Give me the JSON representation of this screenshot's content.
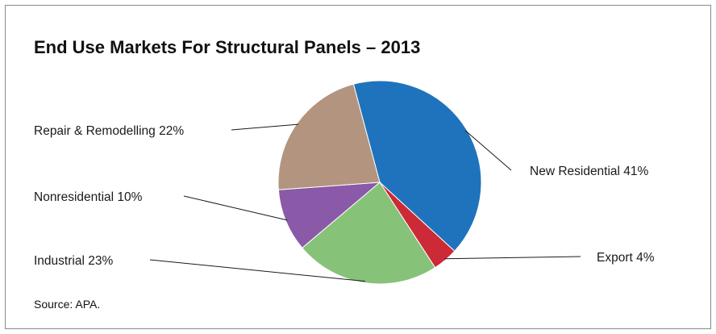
{
  "chart_data": {
    "type": "pie",
    "title": "End Use Markets For Structural Panels – 2013",
    "source": "Source: APA.",
    "slices": [
      {
        "label": "New Residential 41%",
        "value": 41,
        "color": "#1f73bd"
      },
      {
        "label": "Export 4%",
        "value": 4,
        "color": "#cc2a36"
      },
      {
        "label": "Industrial 23%",
        "value": 23,
        "color": "#86c278"
      },
      {
        "label": "Nonresidential 10%",
        "value": 10,
        "color": "#8a5aa8"
      },
      {
        "label": "Repair & Remodelling 22%",
        "value": 22,
        "color": "#b3947f"
      }
    ]
  }
}
